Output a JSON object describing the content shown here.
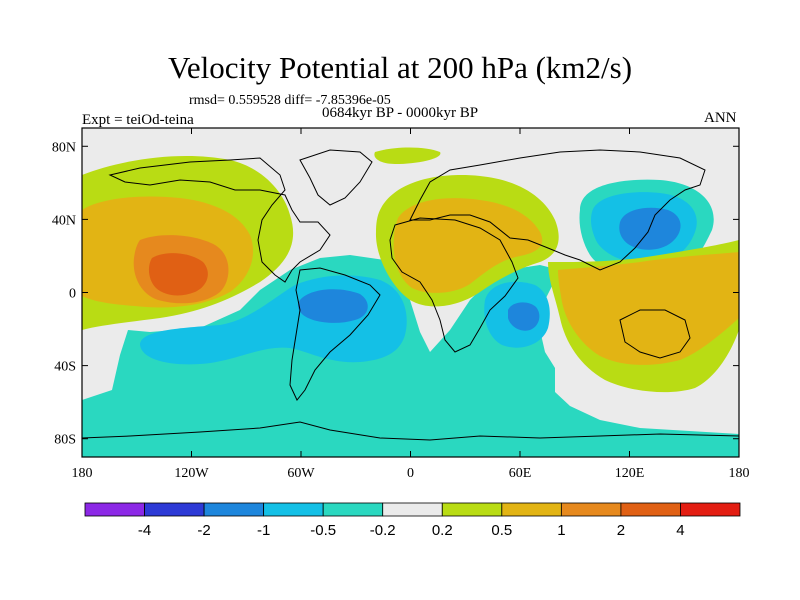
{
  "title": "Velocity Potential at 200 hPa (km2/s)",
  "stats_line": "rmsd= 0.559528 diff= -7.85396e-05",
  "period_line": "0684kyr BP - 0000kyr BP",
  "expt_line": "Expt = teiOd-teina",
  "season": "ANN",
  "chart_data": {
    "type": "contour-map",
    "variable": "Velocity Potential at 200 hPa",
    "units": "km2/s",
    "rmsd": 0.559528,
    "diff": -7.85396e-05,
    "x_axis": {
      "range": [
        -180,
        180
      ],
      "ticks": [
        {
          "value": -180,
          "label": "180"
        },
        {
          "value": -120,
          "label": "120W"
        },
        {
          "value": -60,
          "label": "60W"
        },
        {
          "value": 0,
          "label": "0"
        },
        {
          "value": 60,
          "label": "60E"
        },
        {
          "value": 120,
          "label": "120E"
        },
        {
          "value": 180,
          "label": "180"
        }
      ]
    },
    "y_axis": {
      "range": [
        -90,
        90
      ],
      "ticks": [
        {
          "value": 80,
          "label": "80N"
        },
        {
          "value": 40,
          "label": "40N"
        },
        {
          "value": 0,
          "label": "0"
        },
        {
          "value": -40,
          "label": "40S"
        },
        {
          "value": -80,
          "label": "80S"
        }
      ]
    },
    "colorbar": {
      "levels": [
        "-4",
        "-2",
        "-1",
        "-0.5",
        "-0.2",
        "0.2",
        "0.5",
        "1",
        "2",
        "4"
      ],
      "colors": [
        "#8c28e6",
        "#2d3ad6",
        "#1e86dc",
        "#14c0e6",
        "#2ad8c0",
        "#ebebeb",
        "#b9dc14",
        "#e2b414",
        "#e6891e",
        "#e06014",
        "#e31d12"
      ]
    },
    "features": [
      {
        "type": "high",
        "lon": -140,
        "lat": 10,
        "peak": 2.0
      },
      {
        "type": "high",
        "lon": 25,
        "lat": 15,
        "peak": 1.5
      },
      {
        "type": "high",
        "lon": 130,
        "lat": -10,
        "peak": 1.0
      },
      {
        "type": "low",
        "lon": 140,
        "lat": 35,
        "peak": -1.5
      },
      {
        "type": "low",
        "lon": -45,
        "lat": -5,
        "peak": -1.0
      },
      {
        "type": "low",
        "lon": 60,
        "lat": -15,
        "peak": -1.0
      }
    ]
  }
}
